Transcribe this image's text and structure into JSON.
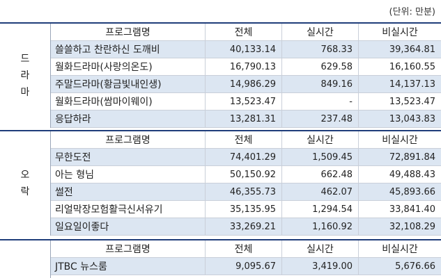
{
  "unit_label": "(단위: 만분)",
  "headers": {
    "program": "프로그램명",
    "total": "전체",
    "realtime": "실시간",
    "nonrealtime": "비실시간"
  },
  "sections": [
    {
      "category_chars": [
        "드",
        "라",
        "마"
      ],
      "rows": [
        {
          "program": "쓸쓸하고 찬란하신 도깨비",
          "total": "40,133.14",
          "realtime": "768.33",
          "nonrealtime": "39,364.81"
        },
        {
          "program": "월화드라마(사랑의온도)",
          "total": "16,790.13",
          "realtime": "629.58",
          "nonrealtime": "16,160.55"
        },
        {
          "program": "주말드라마(황금빛내인생)",
          "total": "14,986.29",
          "realtime": "849.16",
          "nonrealtime": "14,137.13"
        },
        {
          "program": "월화드라마(쌈마이웨이)",
          "total": "13,523.47",
          "realtime": "-",
          "nonrealtime": "13,523.47"
        },
        {
          "program": "응답하라",
          "total": "13,281.31",
          "realtime": "237.48",
          "nonrealtime": "13,043.83"
        }
      ]
    },
    {
      "category_chars": [
        "오",
        "락"
      ],
      "rows": [
        {
          "program": "무한도전",
          "total": "74,401.29",
          "realtime": "1,509.45",
          "nonrealtime": "72,891.84"
        },
        {
          "program": "아는 형님",
          "total": "50,150.92",
          "realtime": "662.48",
          "nonrealtime": "49,488.43"
        },
        {
          "program": "썰전",
          "total": "46,355.73",
          "realtime": "462.07",
          "nonrealtime": "45,893.66"
        },
        {
          "program": "리얼막장모험활극신서유기",
          "total": "35,135.95",
          "realtime": "1,294.54",
          "nonrealtime": "33,841.40"
        },
        {
          "program": "일요일이좋다",
          "total": "33,269.21",
          "realtime": "1,160.92",
          "nonrealtime": "32,108.29"
        }
      ]
    },
    {
      "category_chars": [],
      "rows": [
        {
          "program": "JTBC 뉴스룸",
          "total": "9,095.67",
          "realtime": "3,419.00",
          "nonrealtime": "5,676.66"
        }
      ]
    }
  ]
}
